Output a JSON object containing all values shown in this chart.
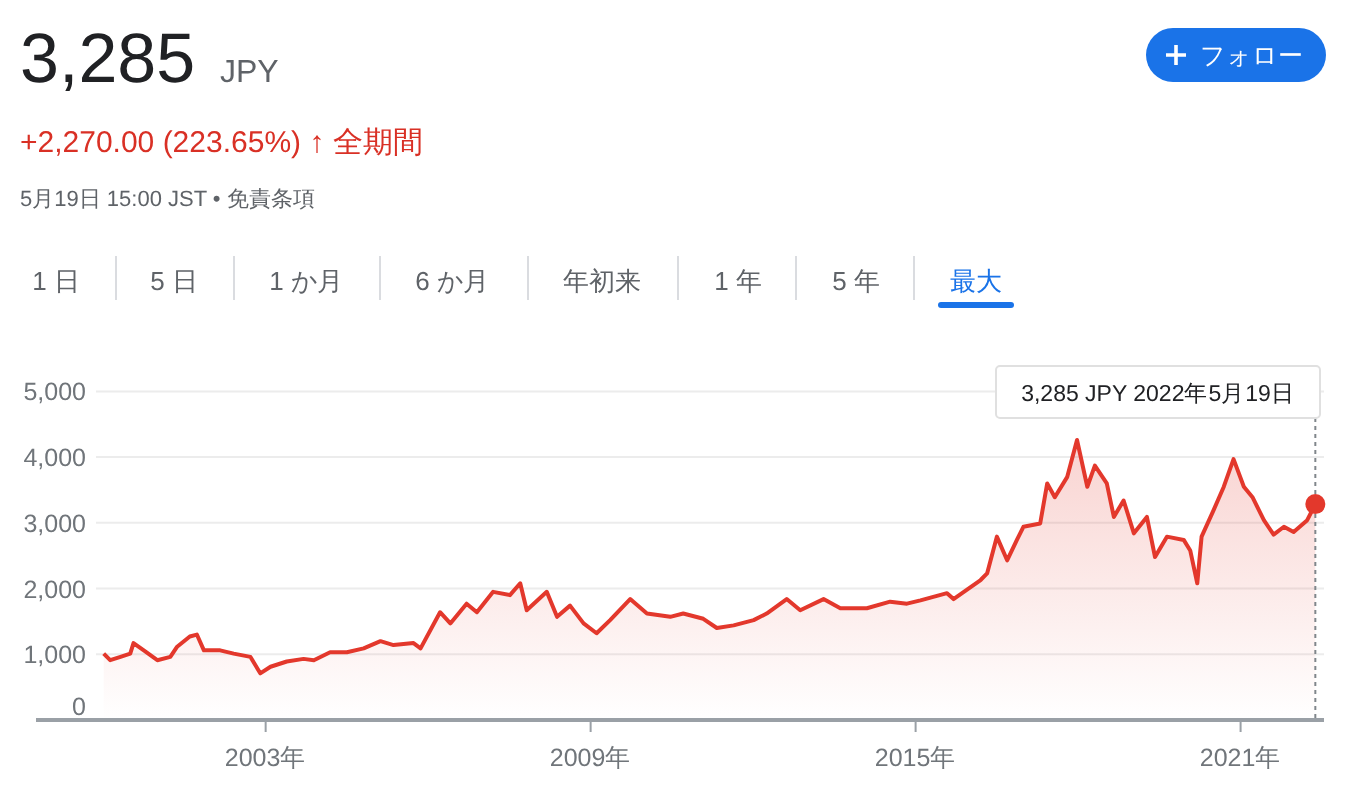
{
  "chart_data": {
    "type": "area",
    "title": "3,285",
    "subtitle": "JPY",
    "annotations": [
      "+2,270.00 (223.65%) ↑ 全期間",
      "5月19日 15:00 JST • 免責条項",
      "1 日",
      "5 日",
      "1 か月",
      "6 か月",
      "年初来",
      "1 年",
      "5 年",
      "最大",
      "フォロー",
      "3,285 JPY  2022年5月19日"
    ],
    "ref_lines": [
      {
        "axis": "x",
        "value": 2022.38,
        "color": "#80868b",
        "line_style": "dotted"
      }
    ],
    "color": "#e3382c",
    "grid": "y",
    "xlim": [
      1998.76,
      2022.54
    ],
    "ylim": [
      0,
      5000
    ],
    "xticks": [
      {
        "value": 2003,
        "label": "2003年"
      },
      {
        "value": 2009,
        "label": "2009年"
      },
      {
        "value": 2015,
        "label": "2015年"
      },
      {
        "value": 2021,
        "label": "2021年"
      }
    ],
    "yticks": [
      0,
      {
        "value": 1000,
        "label": "1,000"
      },
      {
        "value": 2000,
        "label": "2,000"
      },
      {
        "value": 3000,
        "label": "3,000"
      },
      {
        "value": 4000,
        "label": "4,000"
      },
      {
        "value": 5000,
        "label": "5,000"
      }
    ],
    "x": [
      2000.01,
      2000.13,
      2000.32,
      2000.5,
      2000.56,
      2000.75,
      2001.0,
      2001.24,
      2001.36,
      2001.6,
      2001.73,
      2001.86,
      2002.16,
      2002.41,
      2002.72,
      2002.9,
      2003.09,
      2003.39,
      2003.7,
      2003.89,
      2004.19,
      2004.5,
      2004.81,
      2005.12,
      2005.36,
      2005.73,
      2005.86,
      2006.22,
      2006.41,
      2006.71,
      2006.9,
      2007.2,
      2007.51,
      2007.7,
      2007.82,
      2008.19,
      2008.38,
      2008.62,
      2008.87,
      2009.11,
      2009.36,
      2009.73,
      2010.04,
      2010.47,
      2010.71,
      2011.08,
      2011.33,
      2011.64,
      2012.01,
      2012.25,
      2012.62,
      2012.87,
      2013.3,
      2013.61,
      2014.1,
      2014.53,
      2014.84,
      2015.09,
      2015.58,
      2015.7,
      2016.2,
      2016.32,
      2016.5,
      2016.69,
      2016.87,
      2016.99,
      2017.3,
      2017.43,
      2017.57,
      2017.8,
      2017.98,
      2018.17,
      2018.31,
      2018.53,
      2018.66,
      2018.84,
      2019.03,
      2019.27,
      2019.42,
      2019.64,
      2019.95,
      2020.07,
      2020.2,
      2020.28,
      2020.5,
      2020.69,
      2020.87,
      2021.06,
      2021.22,
      2021.43,
      2021.61,
      2021.8,
      2021.98,
      2022.23,
      2022.38
    ],
    "values": [
      1010,
      910,
      960,
      1010,
      1170,
      1060,
      910,
      960,
      1110,
      1270,
      1300,
      1060,
      1060,
      1010,
      960,
      710,
      810,
      890,
      930,
      910,
      1030,
      1030,
      1090,
      1200,
      1140,
      1170,
      1090,
      1640,
      1470,
      1770,
      1640,
      1950,
      1900,
      2080,
      1670,
      1950,
      1570,
      1740,
      1470,
      1320,
      1520,
      1840,
      1620,
      1570,
      1620,
      1540,
      1400,
      1440,
      1520,
      1620,
      1840,
      1670,
      1840,
      1700,
      1700,
      1800,
      1770,
      1820,
      1930,
      1840,
      2130,
      2230,
      2790,
      2430,
      2740,
      2940,
      2990,
      3600,
      3390,
      3700,
      4260,
      3550,
      3870,
      3600,
      3090,
      3340,
      2840,
      3090,
      2480,
      2790,
      2740,
      2580,
      2080,
      2790,
      3190,
      3550,
      3970,
      3550,
      3390,
      3040,
      2820,
      2940,
      2860,
      3040,
      3285
    ]
  }
}
